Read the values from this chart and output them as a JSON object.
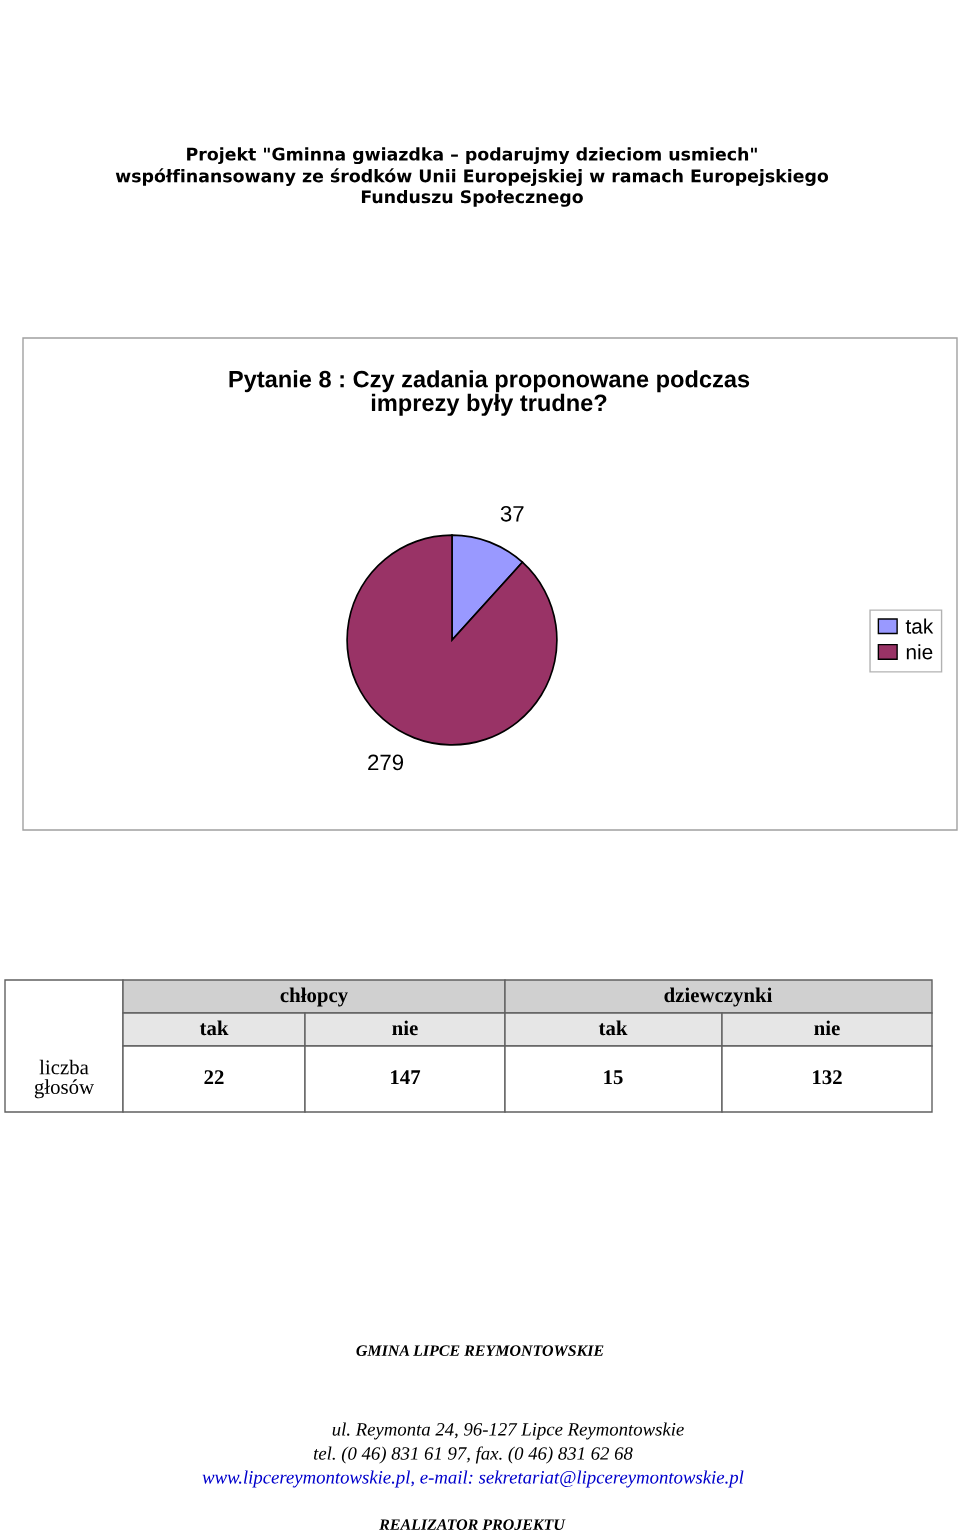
{
  "chart_data": {
    "type": "pie",
    "title": "Pytanie 8 : Czy zadania proponowane podczas\nimprezy były trudne?",
    "categories": [
      "tak",
      "nie"
    ],
    "values": [
      37,
      279
    ],
    "colors": [
      "#9999ff",
      "#993366"
    ],
    "data_labels": true,
    "legend": "right",
    "annotations": [
      "Projekt \"Gminna gwiazdka – podarujmy dzieciom usmiech\"\nwspółfinansowany ze środków Unii Europejskiej w ramach Europejskiego\nFunduszu Społecznego",
      "liczba\ngłosów",
      "chłopcy",
      "dziewczynki",
      "tak",
      "nie",
      "tak",
      "nie",
      "22",
      "147",
      "15",
      "132",
      "GMINA LIPCE REYMONTOWSKIE",
      "ul. Reymonta 24, 96-127 Lipce Reymontowskie",
      "tel. (0 46) 831 61 97, fax. (0 46) 831 62 68",
      "www.lipcereymontowskie.pl, e-mail: sekretariat@lipcereymontowskie.pl",
      "REALIZATOR PROJEKTU"
    ]
  }
}
